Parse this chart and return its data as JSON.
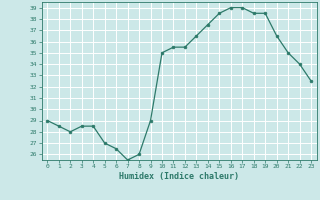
{
  "x": [
    0,
    1,
    2,
    3,
    4,
    5,
    6,
    7,
    8,
    9,
    10,
    11,
    12,
    13,
    14,
    15,
    16,
    17,
    18,
    19,
    20,
    21,
    22,
    23
  ],
  "y": [
    29.0,
    28.5,
    28.0,
    28.5,
    28.5,
    27.0,
    26.5,
    25.5,
    26.0,
    29.0,
    35.0,
    35.5,
    35.5,
    36.5,
    37.5,
    38.5,
    39.0,
    39.0,
    38.5,
    38.5,
    36.5,
    35.0,
    34.0,
    32.5
  ],
  "xlabel": "Humidex (Indice chaleur)",
  "ylim": [
    25.5,
    39.5
  ],
  "xlim": [
    -0.5,
    23.5
  ],
  "yticks": [
    26,
    27,
    28,
    29,
    30,
    31,
    32,
    33,
    34,
    35,
    36,
    37,
    38,
    39
  ],
  "xticks": [
    0,
    1,
    2,
    3,
    4,
    5,
    6,
    7,
    8,
    9,
    10,
    11,
    12,
    13,
    14,
    15,
    16,
    17,
    18,
    19,
    20,
    21,
    22,
    23
  ],
  "line_color": "#2d7a6a",
  "marker_color": "#2d7a6a",
  "bg_color": "#cce8e8",
  "grid_color": "#ffffff",
  "tick_label_color": "#2d7a6a",
  "axis_color": "#2d7a6a"
}
